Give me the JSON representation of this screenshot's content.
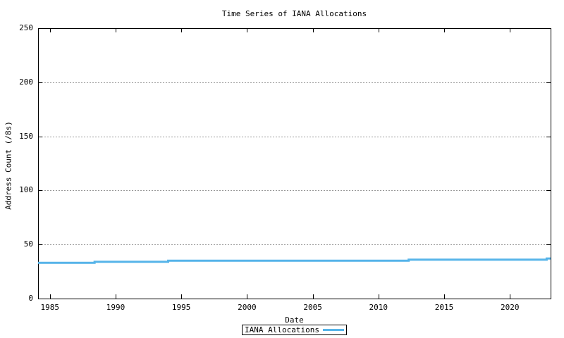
{
  "window": {
    "background": "#ffffff"
  },
  "chart_data": {
    "type": "line",
    "title": "Time Series of IANA Allocations",
    "xlabel": "Date",
    "ylabel": "Address Count (/8s)",
    "xlim": [
      1984.1,
      2023.1
    ],
    "ylim": [
      0,
      250
    ],
    "xticks": [
      1985,
      1990,
      1995,
      2000,
      2005,
      2010,
      2015,
      2020
    ],
    "yticks": [
      0,
      50,
      100,
      150,
      200,
      250
    ],
    "grid": {
      "horizontal": true,
      "vertical": false,
      "color": "#999999",
      "dash": "2,2"
    },
    "axis_color": "#000000",
    "text_color": "#000000",
    "legend": {
      "position": "below-plot-center",
      "boxed": true
    },
    "series": [
      {
        "name": "IANA Allocations",
        "color": "#56b4e9",
        "line_width": 3,
        "style": "step-after",
        "points": [
          [
            1984.1,
            33
          ],
          [
            1988.4,
            34
          ],
          [
            1994.0,
            35
          ],
          [
            2012.3,
            36
          ],
          [
            2022.8,
            37
          ],
          [
            2023.1,
            37
          ]
        ]
      }
    ]
  }
}
